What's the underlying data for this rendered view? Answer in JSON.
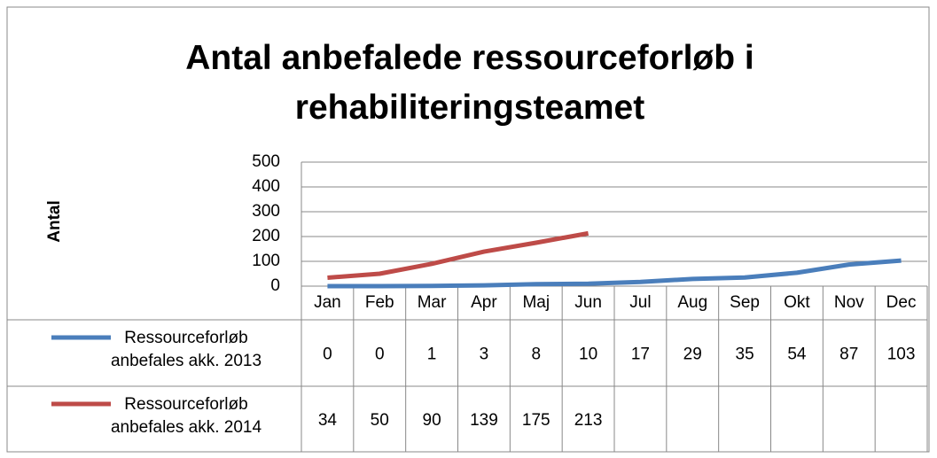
{
  "chart_data": {
    "type": "line",
    "title": "Antal anbefalede ressourceforløb i rehabiliteringsteamet",
    "y_label": "Antal",
    "categories": [
      "Jan",
      "Feb",
      "Mar",
      "Apr",
      "Maj",
      "Jun",
      "Jul",
      "Aug",
      "Sep",
      "Okt",
      "Nov",
      "Dec"
    ],
    "series": [
      {
        "name": "Ressourceforløb anbefales akk. 2013",
        "color": "#4a7ebb",
        "values": [
          0,
          0,
          1,
          3,
          8,
          10,
          17,
          29,
          35,
          54,
          87,
          103
        ]
      },
      {
        "name": "Ressourceforløb anbefales akk. 2014",
        "color": "#be4b48",
        "values": [
          34,
          50,
          90,
          139,
          175,
          213,
          null,
          null,
          null,
          null,
          null,
          null
        ]
      }
    ],
    "ylim": [
      0,
      500
    ],
    "yticks": [
      0,
      100,
      200,
      300,
      400,
      500
    ],
    "grid": true,
    "data_table": true
  }
}
